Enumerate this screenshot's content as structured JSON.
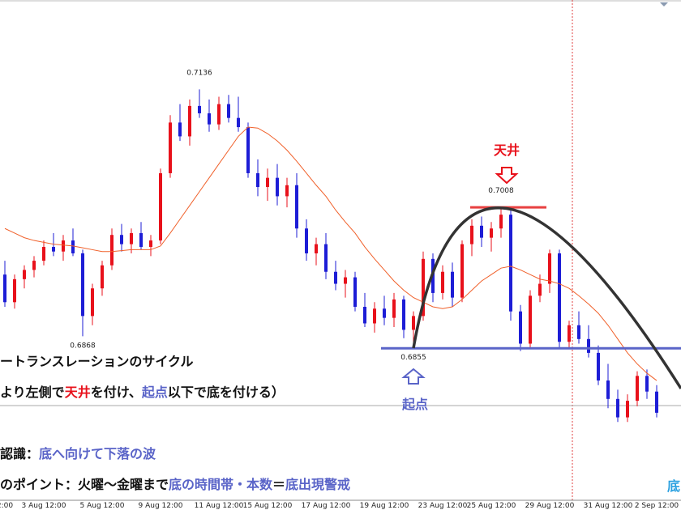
{
  "chart_data": {
    "type": "candlestick",
    "bull_color": "#e8111b",
    "bear_color": "#1d1dd6",
    "ylim": [
      0.669,
      0.7233
    ],
    "categories": [
      "2:00",
      null,
      null,
      null,
      "3 Aug 12:00",
      null,
      null,
      null,
      null,
      null,
      "5 Aug 12:00",
      null,
      null,
      null,
      null,
      null,
      "9 Aug 12:00",
      null,
      null,
      null,
      null,
      null,
      "11 Aug 12:00",
      null,
      null,
      null,
      null,
      "15 Aug 12:00",
      null,
      null,
      null,
      null,
      null,
      "17 Aug 12:00",
      null,
      null,
      null,
      null,
      null,
      "19 Aug 12:00",
      null,
      null,
      null,
      null,
      null,
      "23 Aug 12:00",
      null,
      null,
      null,
      null,
      "25 Aug 12:00",
      null,
      null,
      null,
      null,
      null,
      "29 Aug 12:00",
      null,
      null,
      null,
      null,
      null,
      "31 Aug 12:00",
      null,
      null,
      null,
      null,
      "2 Sep 12:00"
    ],
    "open": [
      0.6935,
      0.6905,
      0.693,
      0.694,
      0.695,
      0.6965,
      0.696,
      0.6972,
      0.6958,
      0.689,
      0.692,
      0.6945,
      0.6978,
      0.6968,
      0.698,
      0.6965,
      0.6972,
      0.7045,
      0.71,
      0.7085,
      0.7118,
      0.711,
      0.7098,
      0.712,
      0.7105,
      0.7095,
      0.7045,
      0.703,
      0.704,
      0.702,
      0.7032,
      0.6985,
      0.6958,
      0.6968,
      0.6938,
      0.6925,
      0.6932,
      0.69,
      0.6882,
      0.6898,
      0.6888,
      0.6908,
      0.6875,
      0.689,
      0.6952,
      0.6915,
      0.6938,
      0.691,
      0.6968,
      0.6988,
      0.6975,
      0.6985,
      0.7,
      0.6895,
      0.686,
      0.6912,
      0.6925,
      0.6958,
      0.6862,
      0.688,
      0.6865,
      0.685,
      0.682,
      0.68,
      0.678,
      0.6798,
      0.6825,
      0.6808
    ],
    "high": [
      0.695,
      0.6935,
      0.6945,
      0.6955,
      0.6972,
      0.698,
      0.6978,
      0.6985,
      0.6962,
      0.6925,
      0.695,
      0.6985,
      0.699,
      0.6985,
      0.6992,
      0.6978,
      0.705,
      0.7108,
      0.712,
      0.7125,
      0.7136,
      0.7125,
      0.7128,
      0.713,
      0.7128,
      0.71,
      0.706,
      0.705,
      0.7055,
      0.704,
      0.7045,
      0.6995,
      0.6975,
      0.698,
      0.695,
      0.694,
      0.6938,
      0.6915,
      0.6905,
      0.6912,
      0.6915,
      0.6912,
      0.6895,
      0.696,
      0.6958,
      0.6945,
      0.6948,
      0.6972,
      0.6995,
      0.6998,
      0.6992,
      0.7008,
      0.7005,
      0.6902,
      0.6918,
      0.6935,
      0.6962,
      0.6962,
      0.6885,
      0.6895,
      0.688,
      0.6858,
      0.6838,
      0.681,
      0.6805,
      0.683,
      0.6832,
      0.6815
    ],
    "low": [
      0.69,
      0.6898,
      0.692,
      0.6932,
      0.6945,
      0.6955,
      0.695,
      0.6955,
      0.6868,
      0.688,
      0.6912,
      0.694,
      0.696,
      0.6958,
      0.6962,
      0.6955,
      0.6968,
      0.704,
      0.708,
      0.7075,
      0.7105,
      0.709,
      0.7092,
      0.71,
      0.709,
      0.704,
      0.702,
      0.7015,
      0.701,
      0.7008,
      0.6975,
      0.695,
      0.6945,
      0.693,
      0.6918,
      0.691,
      0.6895,
      0.6878,
      0.6872,
      0.688,
      0.6878,
      0.6866,
      0.6855,
      0.6885,
      0.6905,
      0.6908,
      0.69,
      0.6905,
      0.6955,
      0.6965,
      0.696,
      0.6975,
      0.6885,
      0.6852,
      0.6855,
      0.6905,
      0.6915,
      0.6855,
      0.6855,
      0.686,
      0.6845,
      0.6815,
      0.679,
      0.6775,
      0.6775,
      0.6792,
      0.68,
      0.678
    ],
    "close": [
      0.6905,
      0.693,
      0.694,
      0.695,
      0.6965,
      0.696,
      0.6972,
      0.6958,
      0.689,
      0.692,
      0.6945,
      0.6978,
      0.6968,
      0.698,
      0.6965,
      0.6972,
      0.7045,
      0.71,
      0.7085,
      0.7118,
      0.711,
      0.7098,
      0.712,
      0.7105,
      0.7095,
      0.7045,
      0.703,
      0.704,
      0.702,
      0.7032,
      0.6985,
      0.6958,
      0.6968,
      0.6938,
      0.6925,
      0.6932,
      0.69,
      0.6882,
      0.6898,
      0.6888,
      0.6908,
      0.6875,
      0.689,
      0.6952,
      0.6915,
      0.6938,
      0.691,
      0.6968,
      0.6988,
      0.6975,
      0.6985,
      0.7,
      0.6895,
      0.686,
      0.6912,
      0.6925,
      0.6958,
      0.6862,
      0.688,
      0.6865,
      0.685,
      0.682,
      0.68,
      0.678,
      0.6798,
      0.6825,
      0.6808,
      0.6785
    ],
    "moving_average": {
      "color": "#f0602a",
      "values": [
        0.6985,
        0.698,
        0.6975,
        0.6972,
        0.697,
        0.6968,
        0.6967,
        0.6966,
        0.6964,
        0.6962,
        0.696,
        0.696,
        0.6961,
        0.6962,
        0.6962,
        0.6962,
        0.6966,
        0.698,
        0.6995,
        0.701,
        0.7025,
        0.704,
        0.7055,
        0.707,
        0.7085,
        0.7095,
        0.7094,
        0.7088,
        0.708,
        0.707,
        0.7058,
        0.7045,
        0.7032,
        0.702,
        0.7005,
        0.6992,
        0.698,
        0.6965,
        0.6952,
        0.694,
        0.6928,
        0.6918,
        0.691,
        0.6905,
        0.69,
        0.6898,
        0.69,
        0.6908,
        0.6918,
        0.6928,
        0.6935,
        0.6942,
        0.6944,
        0.694,
        0.6935,
        0.693,
        0.6928,
        0.6925,
        0.692,
        0.6912,
        0.6903,
        0.6893,
        0.688,
        0.6865,
        0.685,
        0.6838,
        0.6828,
        0.682
      ]
    },
    "price_labels": [
      {
        "value": 0.7136,
        "label": "0.7136"
      },
      {
        "value": 0.6868,
        "label": "0.6868"
      },
      {
        "value": 0.7008,
        "label": "0.7008"
      },
      {
        "value": 0.6855,
        "label": "0.6855"
      }
    ],
    "peak_label": "天井",
    "origin_label": "起点",
    "notes": [
      [
        {
          "text": "ートランスレーションのサイクル",
          "color": "#111111"
        }
      ],
      [
        {
          "text": "より左側で",
          "color": "#111111"
        },
        {
          "text": "天井",
          "color": "#e8111b"
        },
        {
          "text": "を付け、",
          "color": "#111111"
        },
        {
          "text": "起点",
          "color": "#5a64c8"
        },
        {
          "text": "以下で底を付ける）",
          "color": "#111111"
        }
      ],
      [
        {
          "text": "認識：",
          "color": "#111111"
        },
        {
          "text": "底へ向けて下落の波",
          "color": "#5a64c8"
        }
      ],
      [
        {
          "text": "のポイント：火曜〜金曜まで",
          "color": "#111111"
        },
        {
          "text": "底の時間帯・本数",
          "color": "#5a64c8"
        },
        {
          "text": "＝",
          "color": "#111111"
        },
        {
          "text": "底出現警戒",
          "color": "#5a64c8"
        }
      ]
    ],
    "edge_note": "底"
  }
}
